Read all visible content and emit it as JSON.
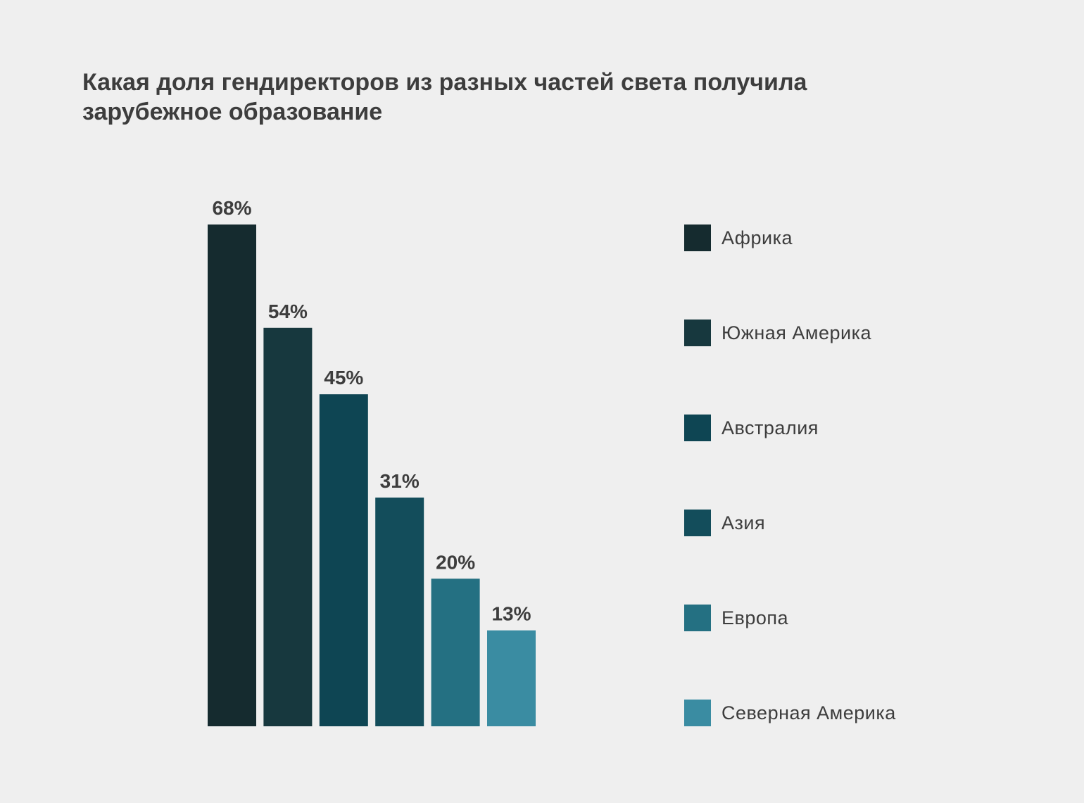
{
  "title": "Какая доля гендиректоров из разных частей света получила зарубежное образование",
  "chart_data": {
    "type": "bar",
    "title": "Какая доля гендиректоров из разных частей света получила зарубежное образование",
    "xlabel": "",
    "ylabel": "",
    "unit": "%",
    "categories": [
      "Африка",
      "Южная Америка",
      "Австралия",
      "Азия",
      "Европа",
      "Северная Америка"
    ],
    "values": [
      68,
      54,
      45,
      31,
      20,
      13
    ],
    "value_labels": [
      "68%",
      "54%",
      "45%",
      "31%",
      "20%",
      "13%"
    ],
    "colors": [
      "#152b2f",
      "#17383e",
      "#0e4553",
      "#134d5b",
      "#247082",
      "#3a8ca2"
    ],
    "ylim": [
      0,
      68
    ],
    "grid": false,
    "legend": "right"
  }
}
